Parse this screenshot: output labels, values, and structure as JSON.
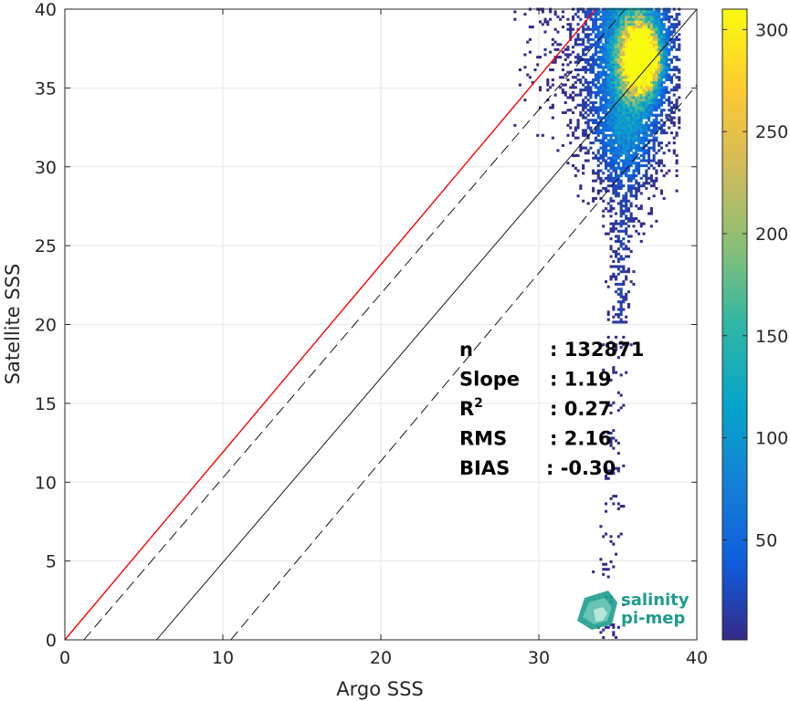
{
  "chart_data": {
    "type": "heatmap",
    "subtype": "2D density scatter (count per bin)",
    "xlabel": "Argo SSS",
    "ylabel": "Satellite SSS",
    "xlim": [
      0,
      40
    ],
    "ylim": [
      0,
      40
    ],
    "xticks": [
      "0",
      "10",
      "20",
      "30",
      "40"
    ],
    "yticks": [
      "0",
      "5",
      "10",
      "15",
      "20",
      "25",
      "30",
      "35",
      "40"
    ],
    "grid": true,
    "colormap": "parula",
    "colorbar": {
      "range": [
        1,
        310
      ],
      "ticks": [
        "50",
        "100",
        "150",
        "200",
        "250",
        "300"
      ],
      "tick_values": [
        50,
        100,
        150,
        200,
        250,
        300
      ]
    },
    "lines": [
      {
        "name": "regression",
        "color": "#ff0000",
        "style": "solid",
        "slope": 1.19,
        "intercept": 0.0
      },
      {
        "name": "1:1 reference",
        "color": "#000000",
        "style": "solid",
        "points": [
          [
            5.8,
            0
          ],
          [
            40,
            40
          ]
        ]
      },
      {
        "name": "upper bound",
        "color": "#000000",
        "style": "dashed",
        "points": [
          [
            1.2,
            0
          ],
          [
            40,
            45.3
          ]
        ]
      },
      {
        "name": "lower bound",
        "color": "#000000",
        "style": "dashed",
        "points": [
          [
            10.5,
            0
          ],
          [
            40,
            35.2
          ]
        ]
      }
    ],
    "density_core": {
      "x": 36.5,
      "y": 36.8,
      "max_count": 310
    },
    "stats": [
      {
        "label": "n",
        "value": ": 132871"
      },
      {
        "label": "Slope",
        "value": ": 1.19"
      },
      {
        "label": "R",
        "superscript": "2",
        "value": ": 0.27"
      },
      {
        "label": "RMS",
        "value": ": 2.16"
      },
      {
        "label": "BIAS",
        "value": ": -0.30"
      }
    ]
  },
  "logo": {
    "line1": "salinity",
    "line2": "pi-mep"
  },
  "colors": {
    "regression": "#ff0000",
    "reference": "#000000",
    "grid": "#e6e6e6",
    "logo": "#1e9c8c"
  }
}
